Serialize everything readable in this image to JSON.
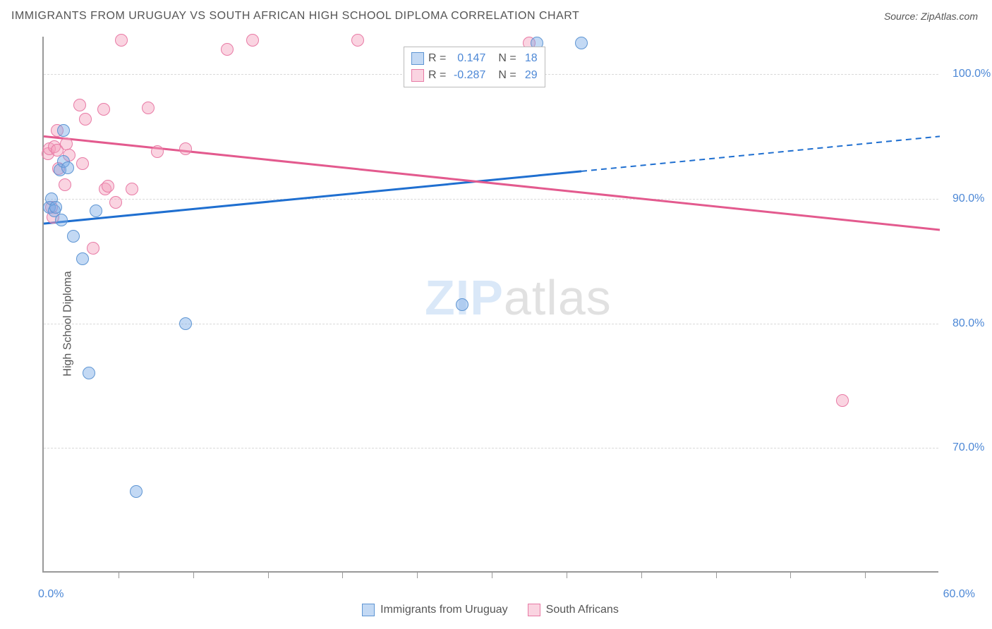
{
  "header": {
    "title": "IMMIGRANTS FROM URUGUAY VS SOUTH AFRICAN HIGH SCHOOL DIPLOMA CORRELATION CHART",
    "source_prefix": "Source: ",
    "source_name": "ZipAtlas.com"
  },
  "chart": {
    "type": "scatter",
    "ylabel": "High School Diploma",
    "background_color": "#ffffff",
    "grid_color": "#d9d9d9",
    "axis_color": "#999999",
    "tick_label_color": "#4d88d6",
    "xlim": [
      0.0,
      60.0
    ],
    "ylim": [
      60.0,
      103.0
    ],
    "yticks": [
      {
        "v": 70.0,
        "label": "70.0%"
      },
      {
        "v": 80.0,
        "label": "80.0%"
      },
      {
        "v": 90.0,
        "label": "90.0%"
      },
      {
        "v": 100.0,
        "label": "100.0%"
      }
    ],
    "xtick_marks": [
      5,
      10,
      15,
      20,
      25,
      30,
      35,
      40,
      45,
      50,
      55
    ],
    "xmin_label": "0.0%",
    "xmax_label": "60.0%",
    "series": [
      {
        "key": "uruguay",
        "label": "Immigrants from Uruguay",
        "fill": "rgba(122,171,230,0.45)",
        "stroke": "#5e95d3",
        "line_color": "#1f6fd0",
        "line_dash_color": "#1f6fd0",
        "marker_r": 9,
        "r_coef": "0.147",
        "n": "18",
        "reg": {
          "x1": 0.0,
          "y1": 88.0,
          "x2": 60.0,
          "y2": 95.0,
          "solid_until_x": 36.0
        },
        "points": [
          {
            "x": 0.4,
            "y": 89.3
          },
          {
            "x": 0.5,
            "y": 90.0
          },
          {
            "x": 0.7,
            "y": 89.0
          },
          {
            "x": 0.8,
            "y": 89.3
          },
          {
            "x": 1.1,
            "y": 92.3
          },
          {
            "x": 1.2,
            "y": 88.3
          },
          {
            "x": 1.3,
            "y": 95.5
          },
          {
            "x": 1.3,
            "y": 93.0
          },
          {
            "x": 1.6,
            "y": 92.5
          },
          {
            "x": 2.0,
            "y": 87.0
          },
          {
            "x": 2.6,
            "y": 85.2
          },
          {
            "x": 3.0,
            "y": 76.0
          },
          {
            "x": 3.5,
            "y": 89.0
          },
          {
            "x": 6.2,
            "y": 66.5
          },
          {
            "x": 9.5,
            "y": 80.0
          },
          {
            "x": 28.0,
            "y": 81.5
          },
          {
            "x": 33.0,
            "y": 102.5
          },
          {
            "x": 36.0,
            "y": 102.5
          }
        ]
      },
      {
        "key": "south_african",
        "label": "South Africans",
        "fill": "rgba(244,160,188,0.45)",
        "stroke": "#e87aa5",
        "line_color": "#e35a8e",
        "marker_r": 9,
        "r_coef": "-0.287",
        "n": "29",
        "reg": {
          "x1": 0.0,
          "y1": 95.0,
          "x2": 60.0,
          "y2": 87.5,
          "solid_until_x": 60.0
        },
        "points": [
          {
            "x": 0.3,
            "y": 93.6
          },
          {
            "x": 0.4,
            "y": 94.0
          },
          {
            "x": 0.5,
            "y": 89.3
          },
          {
            "x": 0.6,
            "y": 88.5
          },
          {
            "x": 0.7,
            "y": 94.2
          },
          {
            "x": 0.9,
            "y": 95.5
          },
          {
            "x": 0.9,
            "y": 93.9
          },
          {
            "x": 1.0,
            "y": 92.4
          },
          {
            "x": 1.4,
            "y": 91.1
          },
          {
            "x": 1.5,
            "y": 94.4
          },
          {
            "x": 1.7,
            "y": 93.5
          },
          {
            "x": 2.4,
            "y": 97.5
          },
          {
            "x": 2.6,
            "y": 92.8
          },
          {
            "x": 2.8,
            "y": 96.4
          },
          {
            "x": 3.3,
            "y": 86.0
          },
          {
            "x": 4.0,
            "y": 97.2
          },
          {
            "x": 4.1,
            "y": 90.8
          },
          {
            "x": 4.3,
            "y": 91.0
          },
          {
            "x": 4.8,
            "y": 89.7
          },
          {
            "x": 5.2,
            "y": 102.7
          },
          {
            "x": 5.9,
            "y": 90.8
          },
          {
            "x": 7.0,
            "y": 97.3
          },
          {
            "x": 7.6,
            "y": 93.8
          },
          {
            "x": 9.5,
            "y": 94.0
          },
          {
            "x": 12.3,
            "y": 102.0
          },
          {
            "x": 14.0,
            "y": 102.7
          },
          {
            "x": 21.0,
            "y": 102.7
          },
          {
            "x": 32.5,
            "y": 102.5
          },
          {
            "x": 53.5,
            "y": 73.8
          }
        ]
      }
    ],
    "watermark": {
      "zip": "ZIP",
      "atlas": "atlas",
      "zip_color": "rgba(122,171,230,0.28)",
      "atlas_color": "rgba(120,120,120,0.22)"
    },
    "reg_legend_labels": {
      "r": "R",
      "eq": " = ",
      "n": "N"
    }
  }
}
